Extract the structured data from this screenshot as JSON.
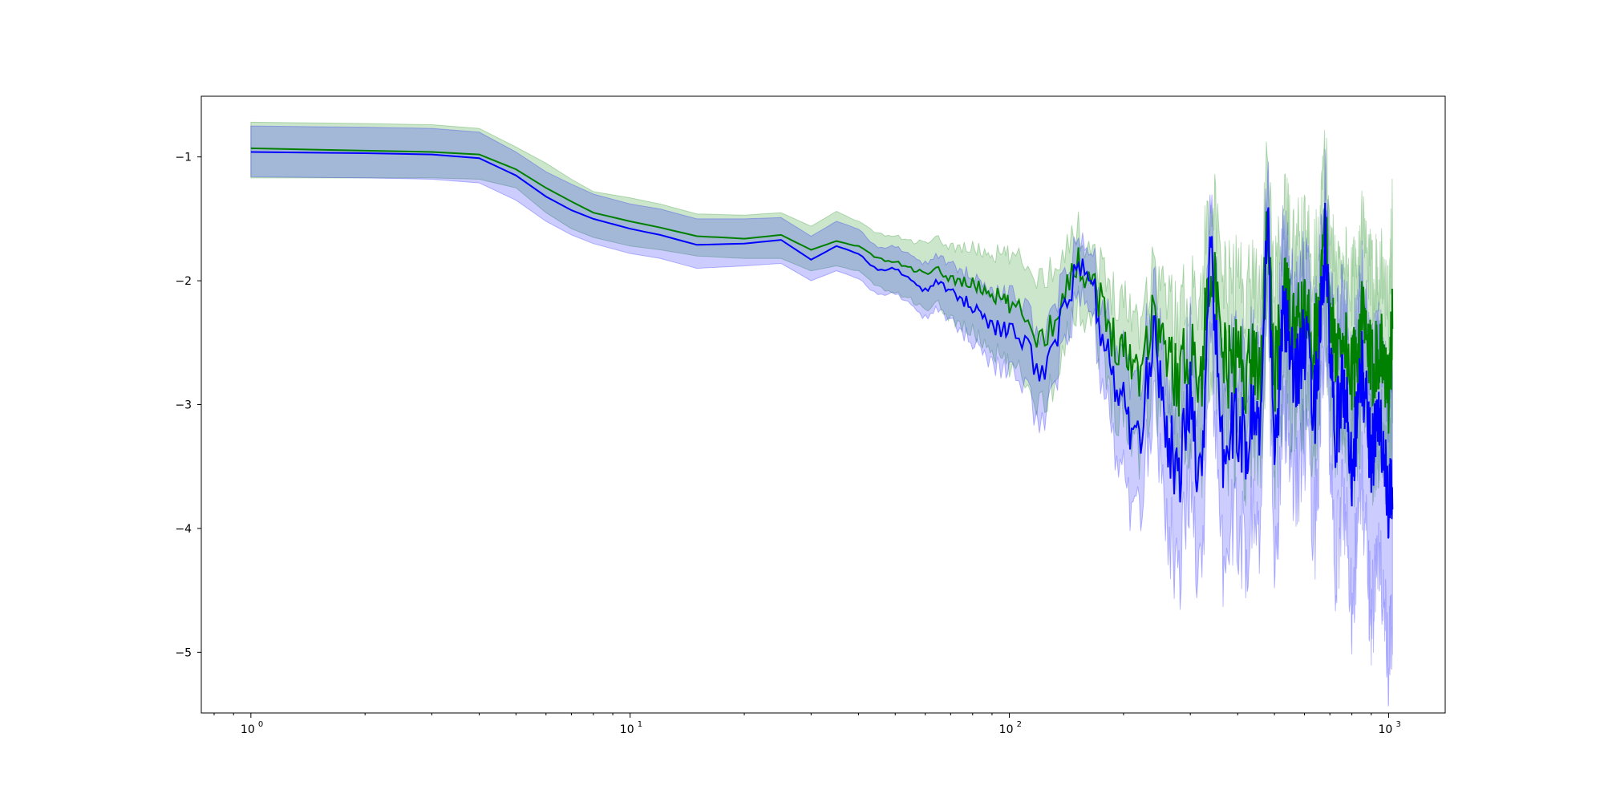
{
  "chart_data": {
    "type": "line",
    "title": "",
    "xlabel": "",
    "ylabel": "",
    "xscale": "log",
    "xlim": [
      0.74,
      1410
    ],
    "ylim": [
      -5.49,
      -0.51
    ],
    "grid": false,
    "legend": "none",
    "x_ticks": [
      {
        "base": "10",
        "exp": "0",
        "value": 1
      },
      {
        "base": "10",
        "exp": "1",
        "value": 10
      },
      {
        "base": "10",
        "exp": "2",
        "value": 100
      },
      {
        "base": "10",
        "exp": "3",
        "value": 1000
      }
    ],
    "y_ticks": [
      {
        "label": "−1",
        "value": -1
      },
      {
        "label": "−2",
        "value": -2
      },
      {
        "label": "−3",
        "value": -3
      },
      {
        "label": "−4",
        "value": -4
      },
      {
        "label": "−5",
        "value": -5
      }
    ],
    "series": [
      {
        "color": "#008000",
        "band_color": "#008000",
        "band_opacity": 0.2,
        "x": [
          1,
          2,
          3,
          4,
          5,
          6,
          7,
          8,
          10,
          12,
          15,
          20,
          25,
          30,
          35,
          40,
          45,
          50,
          55,
          60,
          65,
          70,
          80,
          90,
          100,
          110,
          120,
          130,
          140,
          150,
          160,
          170,
          180,
          200,
          220,
          240,
          260,
          280,
          300,
          320,
          340,
          360,
          380,
          400,
          420,
          440,
          460,
          480,
          500,
          530,
          560,
          600,
          640,
          680,
          720,
          760,
          800,
          850,
          900,
          950,
          1000,
          1024
        ],
        "mean": [
          -0.93,
          -0.95,
          -0.96,
          -0.98,
          -1.1,
          -1.25,
          -1.36,
          -1.45,
          -1.52,
          -1.57,
          -1.64,
          -1.66,
          -1.63,
          -1.75,
          -1.68,
          -1.72,
          -1.82,
          -1.85,
          -1.9,
          -1.95,
          -1.92,
          -1.98,
          -2.03,
          -2.1,
          -2.2,
          -2.28,
          -2.48,
          -2.35,
          -2.05,
          -1.88,
          -1.9,
          -2.05,
          -2.35,
          -2.55,
          -2.7,
          -2.25,
          -2.6,
          -2.8,
          -2.5,
          -2.85,
          -1.7,
          -2.6,
          -2.7,
          -2.6,
          -2.75,
          -2.6,
          -2.7,
          -1.55,
          -2.8,
          -2.1,
          -2.4,
          -2.3,
          -2.5,
          -1.65,
          -2.6,
          -2.4,
          -2.8,
          -2.3,
          -2.7,
          -2.5,
          -2.9,
          -2.35
        ],
        "upper": [
          -0.72,
          -0.73,
          -0.74,
          -0.77,
          -0.92,
          -1.05,
          -1.18,
          -1.28,
          -1.33,
          -1.38,
          -1.46,
          -1.47,
          -1.45,
          -1.56,
          -1.44,
          -1.52,
          -1.62,
          -1.64,
          -1.68,
          -1.7,
          -1.67,
          -1.72,
          -1.74,
          -1.78,
          -1.8,
          -1.86,
          -1.98,
          -1.9,
          -1.72,
          -1.6,
          -1.65,
          -1.82,
          -2.02,
          -2.15,
          -2.3,
          -1.88,
          -2.12,
          -2.32,
          -2.0,
          -2.2,
          -1.1,
          -2.0,
          -2.05,
          -1.95,
          -2.1,
          -1.95,
          -2.05,
          -1.05,
          -2.1,
          -1.45,
          -1.75,
          -1.65,
          -1.85,
          -1.05,
          -1.95,
          -1.75,
          -2.1,
          -1.6,
          -2.0,
          -1.85,
          -2.2,
          -1.48
        ],
        "lower": [
          -1.17,
          -1.17,
          -1.17,
          -1.18,
          -1.25,
          -1.45,
          -1.58,
          -1.65,
          -1.72,
          -1.75,
          -1.8,
          -1.82,
          -1.82,
          -1.92,
          -1.88,
          -1.92,
          -2.05,
          -2.1,
          -2.15,
          -2.25,
          -2.2,
          -2.3,
          -2.42,
          -2.55,
          -2.7,
          -2.8,
          -3.0,
          -2.85,
          -2.45,
          -2.25,
          -2.2,
          -2.4,
          -2.8,
          -3.1,
          -3.3,
          -2.8,
          -3.2,
          -3.4,
          -3.1,
          -3.5,
          -2.4,
          -3.25,
          -3.3,
          -3.2,
          -3.4,
          -3.2,
          -3.3,
          -2.2,
          -3.5,
          -2.8,
          -3.1,
          -3.0,
          -3.2,
          -2.3,
          -3.3,
          -3.1,
          -3.5,
          -3.0,
          -3.4,
          -3.2,
          -3.6,
          -3.1
        ]
      },
      {
        "color": "#0000ff",
        "band_color": "#0000ff",
        "band_opacity": 0.2,
        "x": [
          1,
          2,
          3,
          4,
          5,
          6,
          7,
          8,
          10,
          12,
          15,
          20,
          25,
          30,
          35,
          40,
          45,
          50,
          55,
          60,
          65,
          70,
          80,
          90,
          100,
          110,
          120,
          130,
          140,
          150,
          160,
          170,
          180,
          200,
          220,
          240,
          260,
          280,
          300,
          320,
          340,
          360,
          380,
          400,
          420,
          440,
          460,
          480,
          500,
          530,
          560,
          600,
          640,
          680,
          720,
          760,
          800,
          850,
          900,
          950,
          1000,
          1024
        ],
        "mean": [
          -0.96,
          -0.97,
          -0.98,
          -1.01,
          -1.15,
          -1.32,
          -1.43,
          -1.5,
          -1.58,
          -1.63,
          -1.71,
          -1.7,
          -1.67,
          -1.83,
          -1.72,
          -1.78,
          -1.92,
          -1.9,
          -2.0,
          -2.08,
          -2.0,
          -2.1,
          -2.2,
          -2.35,
          -2.42,
          -2.5,
          -2.75,
          -2.6,
          -2.2,
          -1.95,
          -1.92,
          -2.2,
          -2.6,
          -3.0,
          -3.4,
          -2.35,
          -3.2,
          -3.6,
          -2.9,
          -3.7,
          -1.5,
          -3.4,
          -3.3,
          -3.1,
          -3.4,
          -3.0,
          -3.2,
          -1.5,
          -3.5,
          -2.2,
          -2.8,
          -2.5,
          -3.0,
          -1.7,
          -3.3,
          -2.8,
          -3.5,
          -2.7,
          -3.4,
          -3.1,
          -3.9,
          -3.6
        ],
        "upper": [
          -0.75,
          -0.76,
          -0.77,
          -0.8,
          -0.96,
          -1.12,
          -1.22,
          -1.3,
          -1.38,
          -1.42,
          -1.5,
          -1.5,
          -1.49,
          -1.64,
          -1.52,
          -1.58,
          -1.74,
          -1.72,
          -1.8,
          -1.86,
          -1.79,
          -1.88,
          -1.96,
          -2.08,
          -2.12,
          -2.2,
          -2.45,
          -2.3,
          -1.95,
          -1.75,
          -1.72,
          -1.96,
          -2.3,
          -2.6,
          -2.95,
          -1.98,
          -2.75,
          -3.05,
          -2.4,
          -3.1,
          -1.2,
          -2.8,
          -2.7,
          -2.5,
          -2.8,
          -2.4,
          -2.6,
          -1.2,
          -2.8,
          -1.6,
          -2.2,
          -1.9,
          -2.4,
          -1.3,
          -2.6,
          -2.1,
          -2.7,
          -2.0,
          -2.7,
          -2.4,
          -3.1,
          -2.5
        ],
        "lower": [
          -1.16,
          -1.17,
          -1.18,
          -1.21,
          -1.35,
          -1.52,
          -1.63,
          -1.7,
          -1.78,
          -1.82,
          -1.9,
          -1.88,
          -1.86,
          -2.0,
          -1.92,
          -1.98,
          -2.12,
          -2.1,
          -2.2,
          -2.3,
          -2.22,
          -2.34,
          -2.48,
          -2.65,
          -2.75,
          -2.85,
          -3.15,
          -2.95,
          -2.5,
          -2.2,
          -2.15,
          -2.5,
          -3.0,
          -3.6,
          -4.0,
          -2.9,
          -3.9,
          -4.4,
          -3.6,
          -4.5,
          -2.2,
          -4.3,
          -4.1,
          -3.9,
          -4.3,
          -3.8,
          -4.1,
          -2.0,
          -4.5,
          -3.0,
          -3.7,
          -3.3,
          -4.0,
          -2.3,
          -4.4,
          -3.7,
          -4.6,
          -3.6,
          -4.7,
          -4.2,
          -5.2,
          -4.7
        ]
      }
    ]
  }
}
